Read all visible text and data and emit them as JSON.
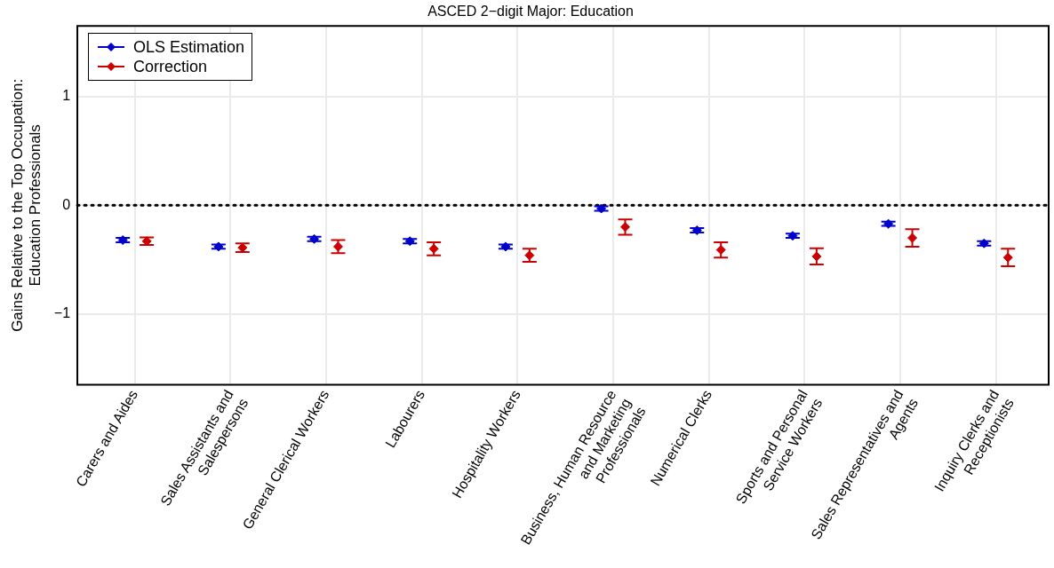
{
  "chart_data": {
    "type": "scatter",
    "title": "ASCED 2−digit Major: Education",
    "ylabel": "Gains Relative to the Top Occupation:\nEducation Professionals",
    "categories": [
      "Carers and Aides",
      "Sales Assistants and Salespersons",
      "General Clerical Workers",
      "Labourers",
      "Hospitality Workers",
      "Business, Human Resource and Marketing Professionals",
      "Numerical Clerks",
      "Sports and Personal Service Workers",
      "Sales Representatives and Agents",
      "Inquiry Clerks and Receptionists"
    ],
    "series": [
      {
        "name": "OLS Estimation",
        "color": "#0000cc",
        "values": [
          -0.32,
          -0.38,
          -0.31,
          -0.33,
          -0.38,
          -0.03,
          -0.23,
          -0.28,
          -0.17,
          -0.35
        ],
        "errors": [
          0.02,
          0.02,
          0.02,
          0.02,
          0.02,
          0.02,
          0.02,
          0.02,
          0.02,
          0.02
        ]
      },
      {
        "name": "Correction",
        "color": "#cc0000",
        "values": [
          -0.33,
          -0.39,
          -0.38,
          -0.4,
          -0.46,
          -0.2,
          -0.41,
          -0.47,
          -0.3,
          -0.48
        ],
        "errors": [
          0.035,
          0.04,
          0.06,
          0.06,
          0.06,
          0.07,
          0.07,
          0.075,
          0.08,
          0.08
        ]
      }
    ],
    "ylim": [
      -1.65,
      1.65
    ],
    "yticks": [
      {
        "value": -1,
        "label": "−1"
      },
      0,
      1
    ],
    "ref_lines": [
      {
        "axis": "y",
        "value": 0,
        "color": "#000000",
        "line_style": "dotted"
      }
    ],
    "grid": true,
    "legend": "top left",
    "marker": "diamond"
  }
}
